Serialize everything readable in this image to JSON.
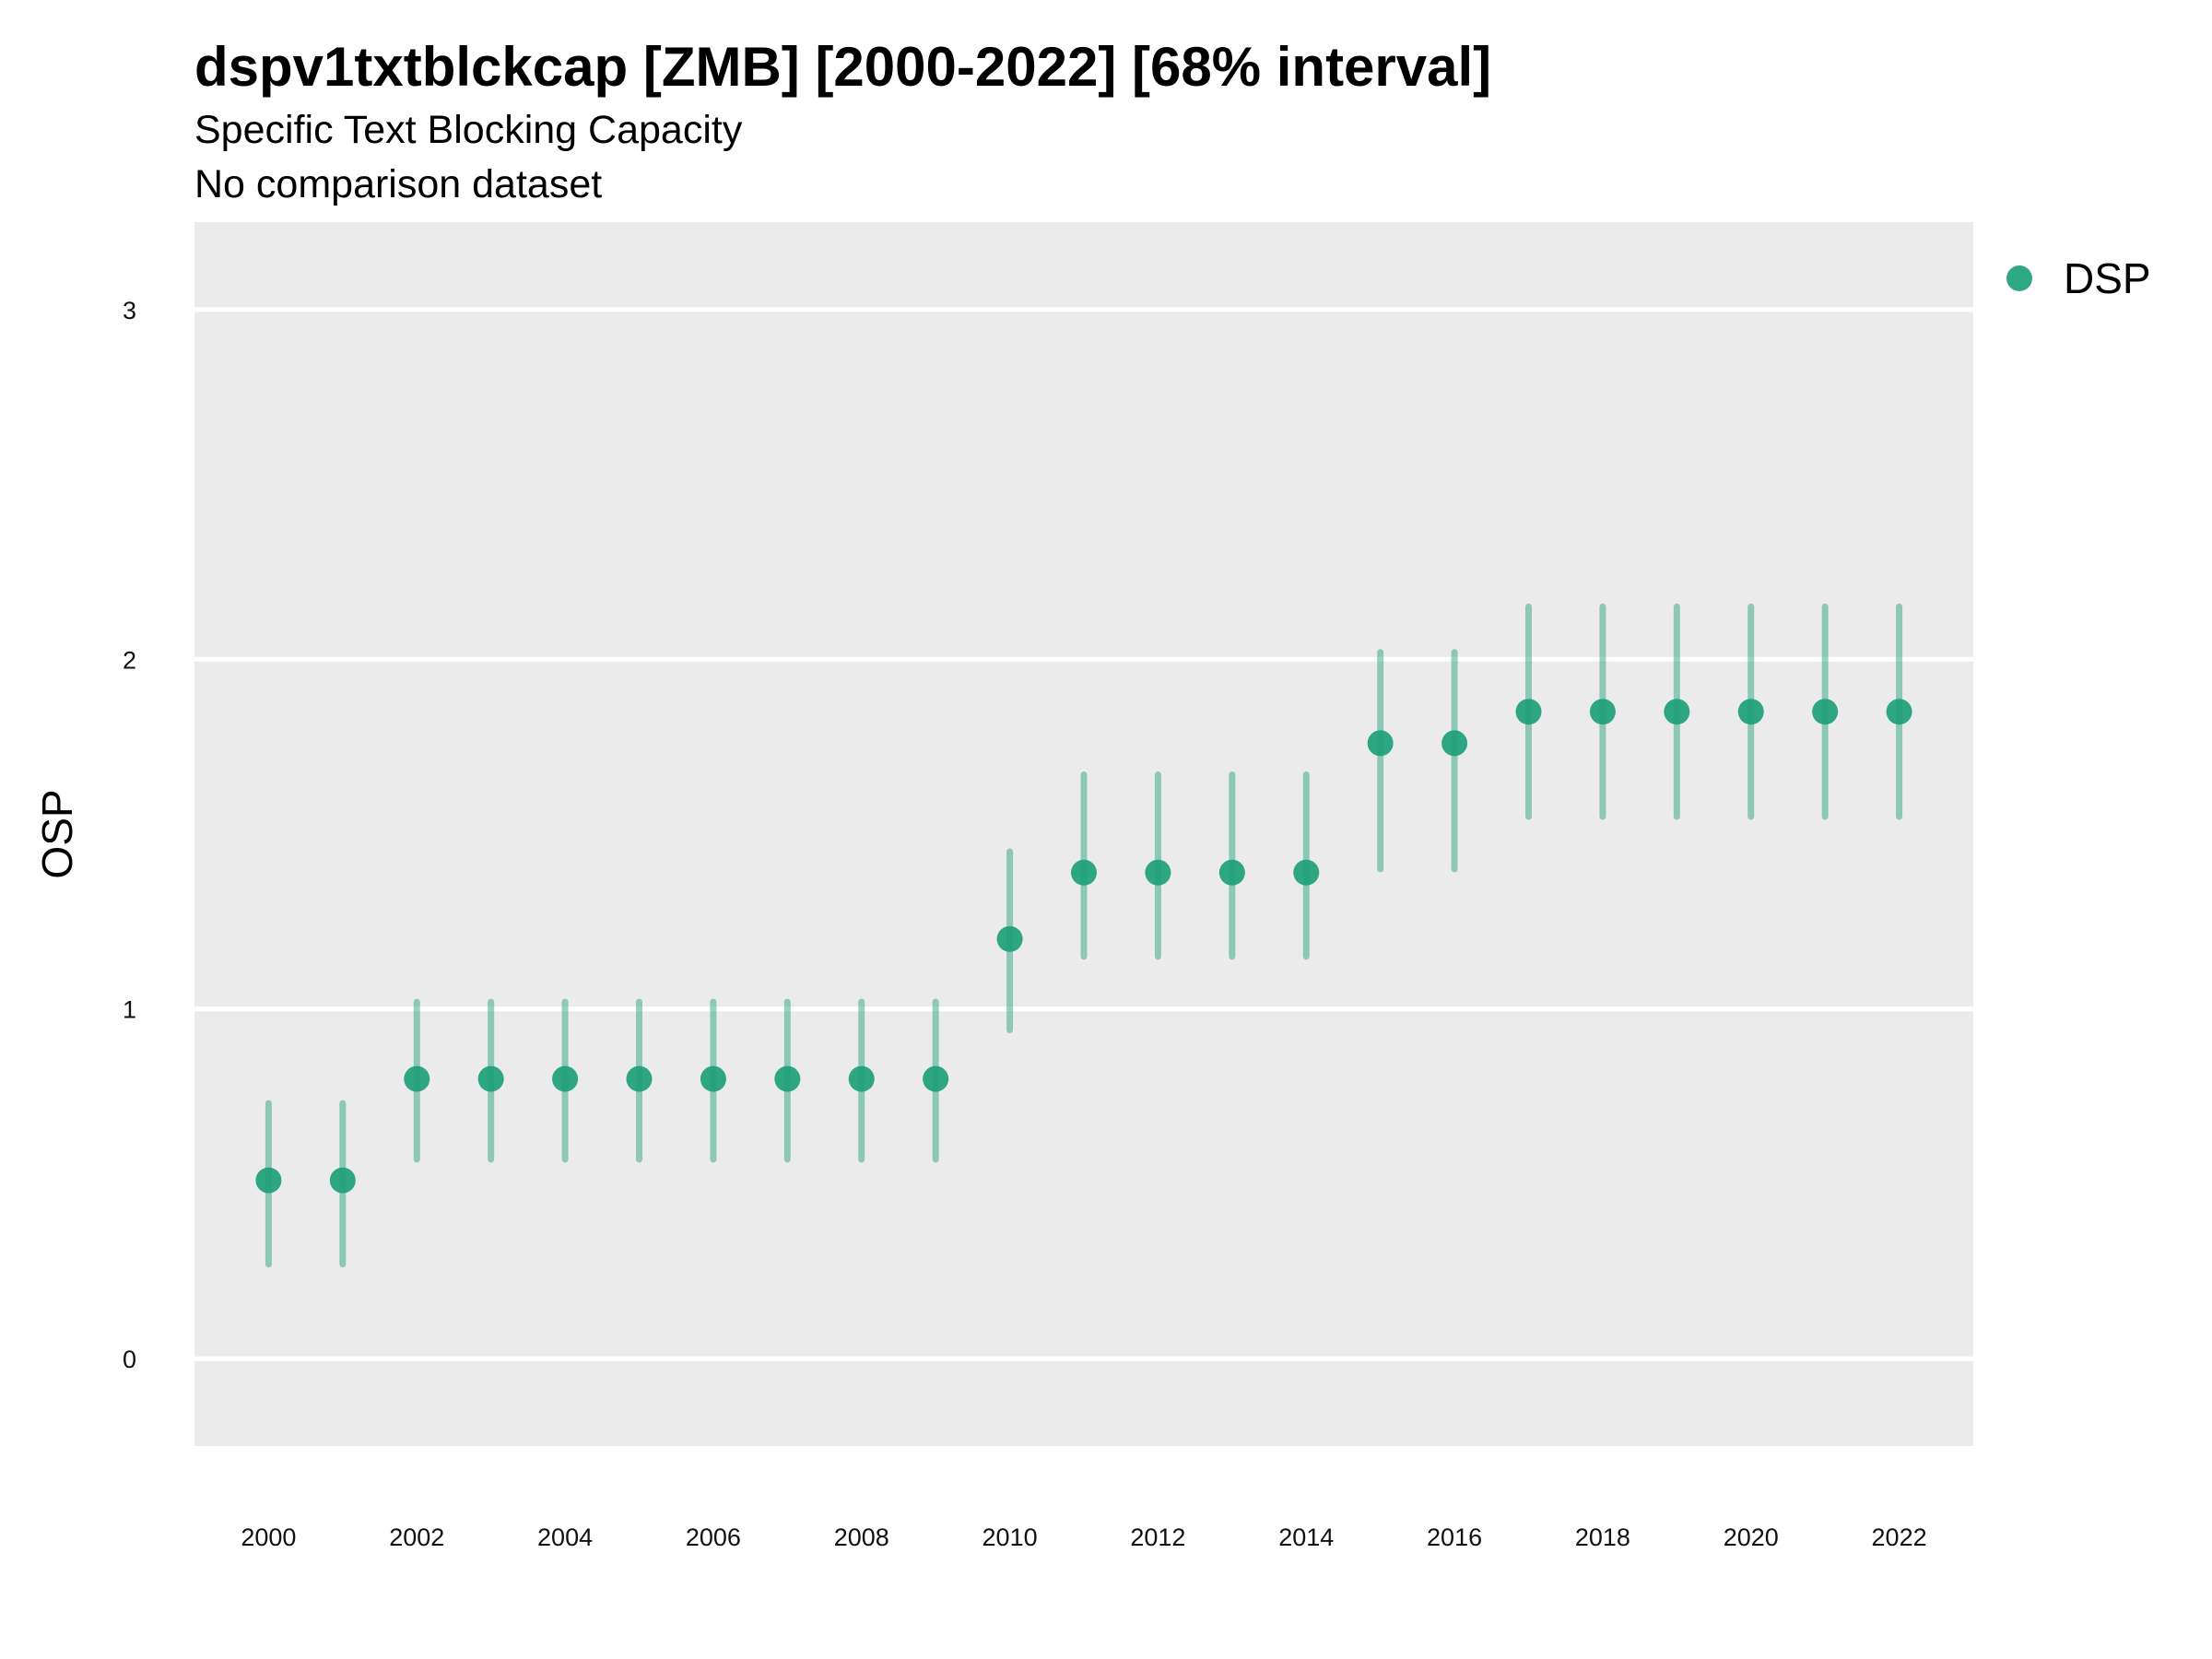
{
  "chart_data": {
    "type": "scatter",
    "title": "dspv1txtblckcap [ZMB] [2000-2022] [68% interval]",
    "subtitle_lines": [
      "Specific Text Blocking Capacity",
      "No comparison dataset"
    ],
    "xlabel": "",
    "ylabel": "OSP",
    "xlim": [
      1999,
      2023
    ],
    "ylim": [
      -0.25,
      3.25
    ],
    "x_ticks": [
      2000,
      2002,
      2004,
      2006,
      2008,
      2010,
      2012,
      2014,
      2016,
      2018,
      2020,
      2022
    ],
    "y_ticks": [
      0,
      1,
      2,
      3
    ],
    "grid": true,
    "legend_position": "right",
    "panel_color": "#ebebeb",
    "series": [
      {
        "name": "DSP",
        "color": "#1b9e77",
        "x": [
          2000,
          2001,
          2002,
          2003,
          2004,
          2005,
          2006,
          2007,
          2008,
          2009,
          2010,
          2011,
          2012,
          2013,
          2014,
          2015,
          2016,
          2017,
          2018,
          2019,
          2020,
          2021,
          2022
        ],
        "y": [
          0.51,
          0.51,
          0.8,
          0.8,
          0.8,
          0.8,
          0.8,
          0.8,
          0.8,
          0.8,
          1.2,
          1.39,
          1.39,
          1.39,
          1.39,
          1.76,
          1.76,
          1.85,
          1.85,
          1.85,
          1.85,
          1.85,
          1.85
        ],
        "lower": [
          0.27,
          0.27,
          0.57,
          0.57,
          0.57,
          0.57,
          0.57,
          0.57,
          0.57,
          0.57,
          0.94,
          1.15,
          1.15,
          1.15,
          1.15,
          1.4,
          1.4,
          1.55,
          1.55,
          1.55,
          1.55,
          1.55,
          1.55
        ],
        "upper": [
          0.73,
          0.73,
          1.02,
          1.02,
          1.02,
          1.02,
          1.02,
          1.02,
          1.02,
          1.02,
          1.45,
          1.67,
          1.67,
          1.67,
          1.67,
          2.02,
          2.02,
          2.15,
          2.15,
          2.15,
          2.15,
          2.15,
          2.15
        ]
      }
    ]
  }
}
